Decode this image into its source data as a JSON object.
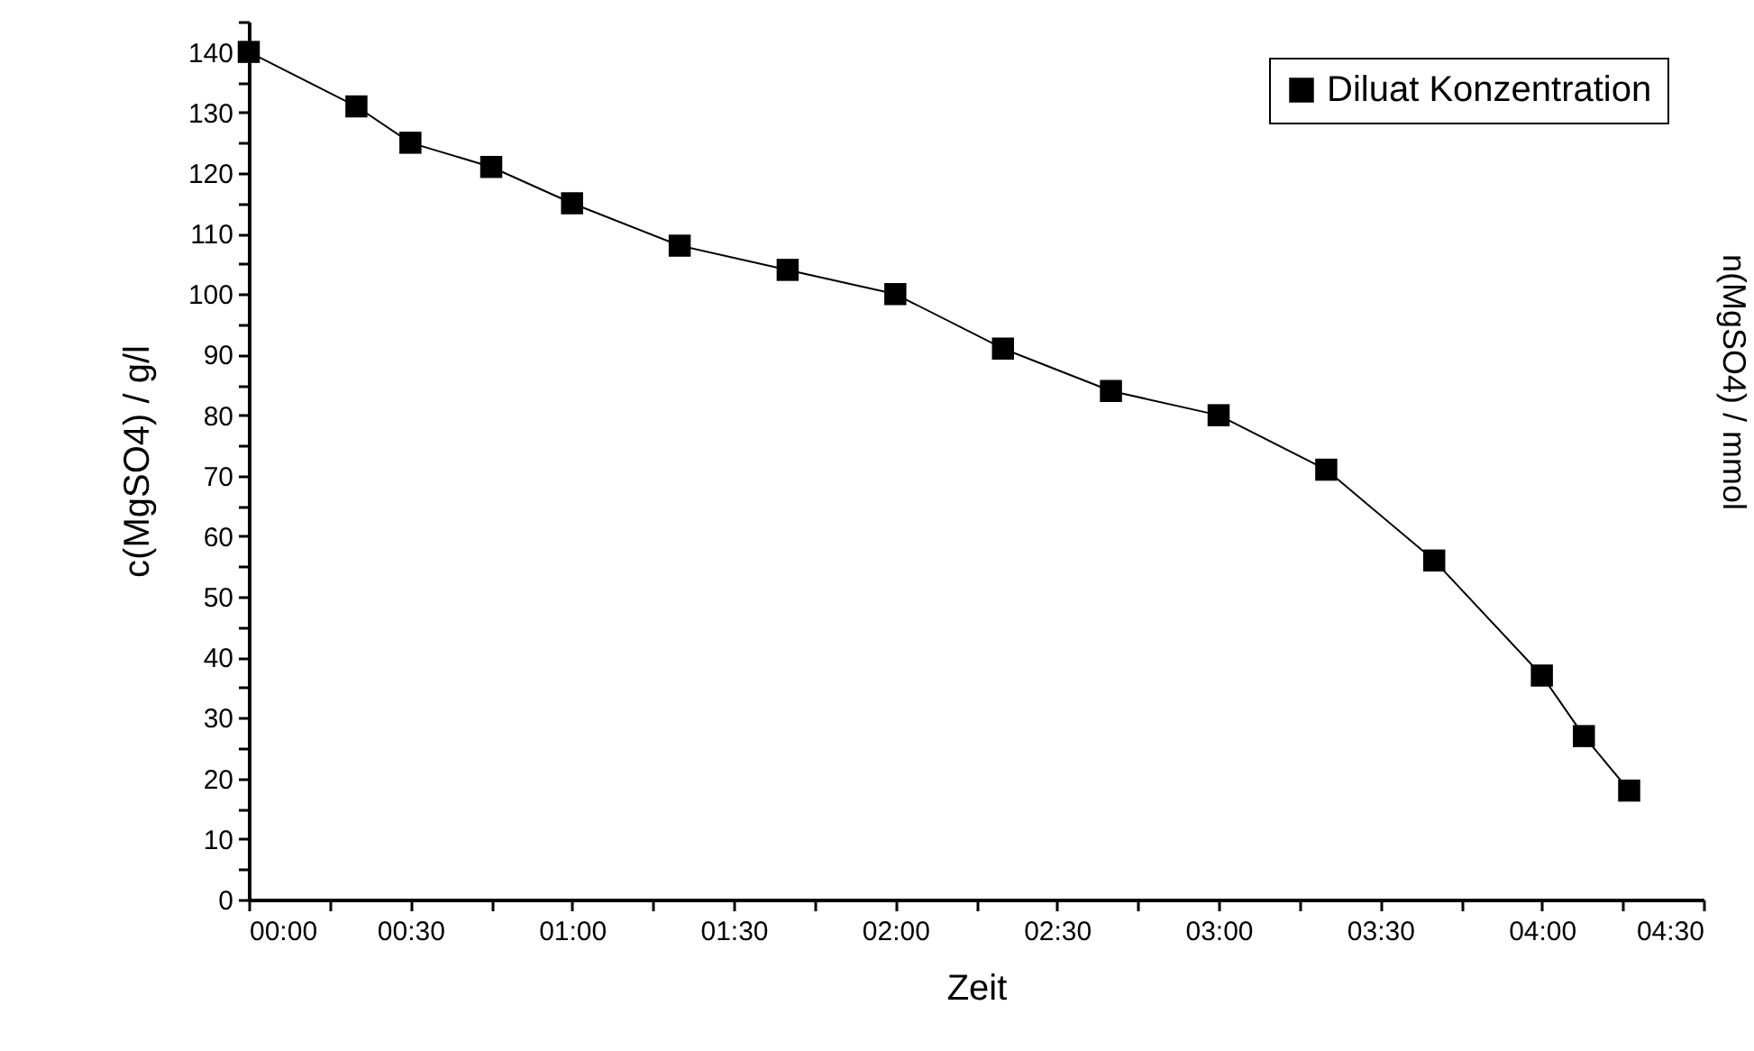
{
  "chart_data": {
    "type": "line",
    "xlabel": "Zeit",
    "ylabel": "c(MgSO4) / g/l",
    "y2label": "n(MgSO4) / mmol",
    "x": [
      0,
      0.333,
      0.5,
      0.75,
      1.0,
      1.333,
      1.667,
      2.0,
      2.333,
      2.667,
      3.0,
      3.333,
      3.667,
      4.0,
      4.13,
      4.27
    ],
    "series": [
      {
        "name": "Diluat Konzentration",
        "color": "#000000",
        "values": [
          140,
          131,
          125,
          121,
          115,
          108,
          104,
          100,
          91,
          84,
          80,
          71,
          56,
          37,
          27,
          18
        ]
      }
    ],
    "xlim": [
      0,
      4.5
    ],
    "xticks": [
      {
        "value": 0,
        "label": "00:00"
      },
      {
        "value": 0.25,
        "label": null
      },
      {
        "value": 0.5,
        "label": "00:30"
      },
      {
        "value": 0.75,
        "label": null
      },
      {
        "value": 1,
        "label": "01:00"
      },
      {
        "value": 1.25,
        "label": null
      },
      {
        "value": 1.5,
        "label": "01:30"
      },
      {
        "value": 1.75,
        "label": null
      },
      {
        "value": 2,
        "label": "02:00"
      },
      {
        "value": 2.25,
        "label": null
      },
      {
        "value": 2.5,
        "label": "02:30"
      },
      {
        "value": 2.75,
        "label": null
      },
      {
        "value": 3,
        "label": "03:00"
      },
      {
        "value": 3.25,
        "label": null
      },
      {
        "value": 3.5,
        "label": "03:30"
      },
      {
        "value": 3.75,
        "label": null
      },
      {
        "value": 4,
        "label": "04:00"
      },
      {
        "value": 4.25,
        "label": null
      },
      {
        "value": 4.5,
        "label": "04:30"
      }
    ],
    "ylim": [
      0,
      145
    ],
    "yticks": [
      0,
      {
        "value": 5,
        "label": null
      },
      10,
      {
        "value": 15,
        "label": null
      },
      20,
      {
        "value": 25,
        "label": null
      },
      30,
      {
        "value": 35,
        "label": null
      },
      40,
      {
        "value": 45,
        "label": null
      },
      50,
      {
        "value": 55,
        "label": null
      },
      60,
      {
        "value": 65,
        "label": null
      },
      70,
      {
        "value": 75,
        "label": null
      },
      80,
      {
        "value": 85,
        "label": null
      },
      90,
      {
        "value": 95,
        "label": null
      },
      100,
      {
        "value": 105,
        "label": null
      },
      110,
      {
        "value": 115,
        "label": null
      },
      120,
      {
        "value": 125,
        "label": null
      },
      130,
      {
        "value": 135,
        "label": null
      },
      140,
      {
        "value": 145,
        "label": null
      }
    ],
    "marker": "square",
    "line_style": "solid",
    "grid": false,
    "legend": "top right"
  }
}
